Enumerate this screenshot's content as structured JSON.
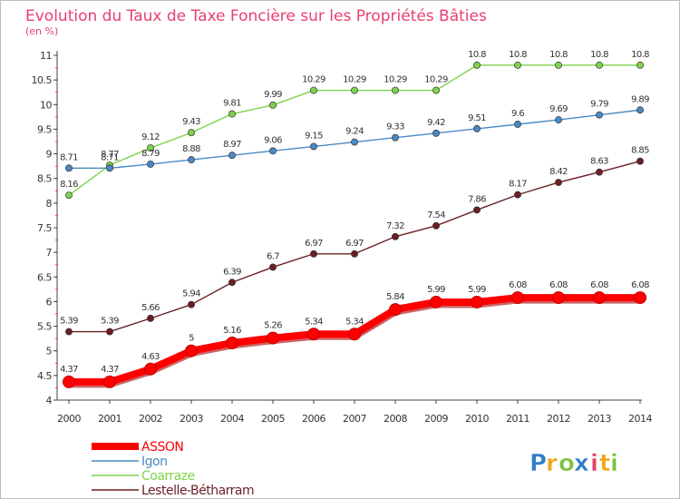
{
  "chart_data": {
    "type": "line",
    "title": "Evolution du Taux de Taxe Foncière sur les Propriétés Bâties",
    "subtitle": "(en %)",
    "categories": [
      "2000",
      "2001",
      "2002",
      "2003",
      "2004",
      "2005",
      "2006",
      "2007",
      "2008",
      "2009",
      "2010",
      "2011",
      "2012",
      "2013",
      "2014"
    ],
    "ylim": [
      4,
      11
    ],
    "yticks": [
      "4",
      "4.5",
      "5",
      "5.5",
      "6",
      "6.5",
      "7",
      "7.5",
      "8",
      "8.5",
      "9",
      "9.5",
      "10",
      "10.5",
      "11"
    ],
    "grid": false,
    "legend_position": "bottom-left",
    "series": [
      {
        "name": "ASSON",
        "color": "#ff0000",
        "values": [
          4.37,
          4.37,
          4.63,
          5,
          5.16,
          5.26,
          5.34,
          5.34,
          5.84,
          5.99,
          5.99,
          6.08,
          6.08,
          6.08,
          6.08
        ],
        "labels": [
          "4.37",
          "4.37",
          "4.63",
          "5",
          "5.16",
          "5.26",
          "5.34",
          "5.34",
          "5.84",
          "5.99",
          "5.99",
          "6.08",
          "6.08",
          "6.08",
          "6.08"
        ]
      },
      {
        "name": "Igon",
        "color": "#4a8ac4",
        "values": [
          8.71,
          8.71,
          8.79,
          8.88,
          8.97,
          9.06,
          9.15,
          9.24,
          9.33,
          9.42,
          9.51,
          9.6,
          9.69,
          9.79,
          9.89
        ],
        "labels": [
          "8.71",
          "8.71",
          "8.79",
          "8.88",
          "8.97",
          "9.06",
          "9.15",
          "9.24",
          "9.33",
          "9.42",
          "9.51",
          "9.6",
          "9.69",
          "9.79",
          "9.89"
        ]
      },
      {
        "name": "Coarraze",
        "color": "#7ed34a",
        "values": [
          8.16,
          8.77,
          9.12,
          9.43,
          9.81,
          9.99,
          10.29,
          10.29,
          10.29,
          10.29,
          10.8,
          10.8,
          10.8,
          10.8,
          10.8
        ],
        "labels": [
          "8.16",
          "8.77",
          "9.12",
          "9.43",
          "9.81",
          "9.99",
          "10.29",
          "10.29",
          "10.29",
          "10.29",
          "10.8",
          "10.8",
          "10.8",
          "10.8",
          "10.8"
        ]
      },
      {
        "name": "Lestelle-Bétharram",
        "color": "#6b1f24",
        "values": [
          5.39,
          5.39,
          5.66,
          5.94,
          6.39,
          6.7,
          6.97,
          6.97,
          7.32,
          7.54,
          7.86,
          8.17,
          8.42,
          8.63,
          8.85
        ],
        "labels": [
          "5.39",
          "5.39",
          "5.66",
          "5.94",
          "6.39",
          "6.7",
          "6.97",
          "6.97",
          "7.32",
          "7.54",
          "7.86",
          "8.17",
          "8.42",
          "8.63",
          "8.85"
        ]
      }
    ]
  },
  "logo": {
    "text": "Proxiti",
    "letters": [
      "P",
      "r",
      "o",
      "x",
      "i",
      "t",
      "i"
    ]
  }
}
